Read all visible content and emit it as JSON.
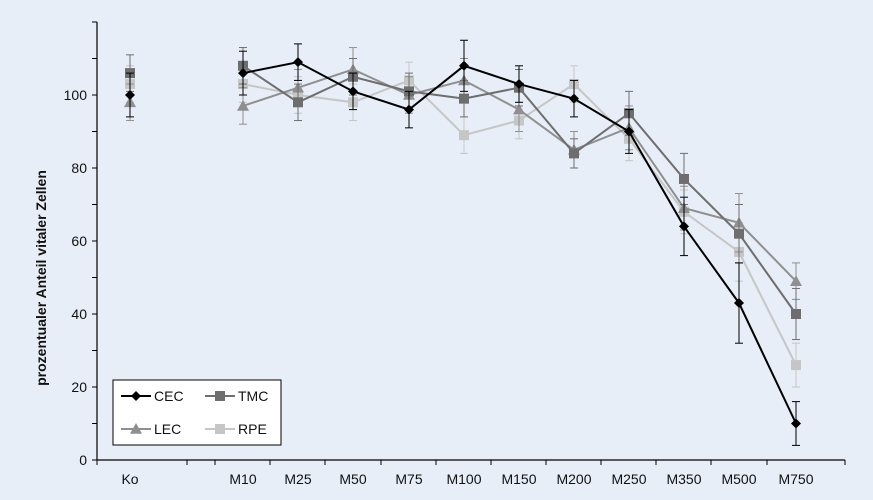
{
  "chart_data": {
    "type": "line",
    "ylabel": "prozentualer Anteil vitaler Zellen",
    "xlabel": "",
    "ylim": [
      0,
      120
    ],
    "yticks": [
      0,
      20,
      40,
      60,
      80,
      100
    ],
    "categories": [
      "Ko",
      "M10",
      "M25",
      "M50",
      "M75",
      "M100",
      "M150",
      "M200",
      "M250",
      "M350",
      "M500",
      "M750"
    ],
    "grid": false,
    "legend_position": "bottom-left",
    "series": [
      {
        "name": "CEC",
        "color": "#000000",
        "marker": "diamond",
        "values": [
          100,
          106,
          109,
          101,
          96,
          108,
          103,
          99,
          90,
          64,
          43,
          10
        ],
        "errors": [
          6,
          6,
          5,
          5,
          5,
          7,
          5,
          5,
          6,
          8,
          11,
          6
        ]
      },
      {
        "name": "TMC",
        "color": "#6e6e6e",
        "marker": "square",
        "values": [
          106,
          108,
          98,
          105,
          101,
          99,
          102,
          84,
          95,
          77,
          62,
          40
        ],
        "errors": [
          5,
          5,
          5,
          5,
          5,
          5,
          5,
          4,
          6,
          7,
          8,
          7
        ]
      },
      {
        "name": "LEC",
        "color": "#8f8f8f",
        "marker": "triangle",
        "values": [
          98,
          97,
          102,
          107,
          100,
          104,
          96,
          85,
          91,
          69,
          65,
          49
        ],
        "errors": [
          5,
          5,
          5,
          6,
          5,
          6,
          6,
          5,
          6,
          6,
          8,
          5
        ]
      },
      {
        "name": "RPE",
        "color": "#c6c6c6",
        "marker": "square",
        "values": [
          103,
          103,
          100,
          98,
          104,
          89,
          93,
          103,
          88,
          68,
          57,
          26
        ],
        "errors": [
          5,
          5,
          5,
          5,
          5,
          5,
          5,
          5,
          6,
          6,
          8,
          6
        ]
      }
    ]
  }
}
